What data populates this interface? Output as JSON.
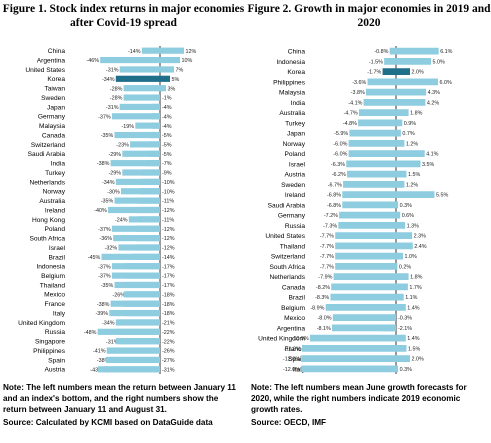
{
  "chart_data": [
    {
      "type": "bar",
      "title": "Figure 1. Stock index returns in major economies after Covid-19 spread",
      "colors": {
        "bar": "#8ecde0",
        "highlight": "#1f6f8b",
        "axis": "#000000"
      },
      "categories": [
        "China",
        "Argentina",
        "United States",
        "Korea",
        "Taiwan",
        "Sweden",
        "Japan",
        "Germany",
        "Malaysia",
        "Canada",
        "Switzerland",
        "Saudi Arabia",
        "India",
        "Turkey",
        "Netherlands",
        "Norway",
        "Australia",
        "Ireland",
        "Hong Kong",
        "Poland",
        "South Africa",
        "Israel",
        "Brazil",
        "Indonesia",
        "Belgium",
        "Thailand",
        "Mexico",
        "France",
        "Italy",
        "United Kingdom",
        "Russia",
        "Singapore",
        "Philippines",
        "Spain",
        "Austria"
      ],
      "highlight": "Korea",
      "series": [
        {
          "name": "return between January 11 and an index's bottom",
          "values": [
            -14,
            -46,
            -31,
            -34,
            -28,
            -28,
            -31,
            -37,
            -19,
            -35,
            -23,
            -29,
            -38,
            -29,
            -34,
            -30,
            -35,
            -40,
            -24,
            -37,
            -36,
            -32,
            -45,
            -37,
            -37,
            -35,
            -26,
            -38,
            -39,
            -34,
            -48,
            -31,
            -41,
            -38,
            -43
          ],
          "labels": [
            "-14%",
            "-46%",
            "-31%",
            "-34%",
            "-28%",
            "-28%",
            "-31%",
            "-37%",
            "-19%",
            "-35%",
            "-23%",
            "-29%",
            "-38%",
            "-29%",
            "-34%",
            "-30%",
            "-35%",
            "-40%",
            "-24%",
            "-37%",
            "-36%",
            "-32%",
            "-45%",
            "-37%",
            "-37%",
            "-35%",
            "-26%",
            "-38%",
            "-39%",
            "-34%",
            "-48%",
            "-31%",
            "-41%",
            "-38%",
            "-43%"
          ]
        },
        {
          "name": "return between January 11 and August 31",
          "values": [
            12,
            10,
            7,
            5,
            3,
            -1,
            -4,
            -4,
            -4,
            -5,
            -5,
            -5,
            -7,
            -9,
            -10,
            -10,
            -11,
            -12,
            -11,
            -12,
            -12,
            -12,
            -14,
            -17,
            -17,
            -17,
            -18,
            -18,
            -18,
            -21,
            -22,
            -22,
            -26,
            -27,
            -31
          ],
          "labels": [
            "12%",
            "10%",
            "7%",
            "5%",
            "3%",
            "-1%",
            "-4%",
            "-4%",
            "-4%",
            "-5%",
            "-5%",
            "-5%",
            "-7%",
            "-9%",
            "-10%",
            "-10%",
            "-11%",
            "-12%",
            "-11%",
            "-12%",
            "-12%",
            "-12%",
            "-14%",
            "-17%",
            "-17%",
            "-17%",
            "-18%",
            "-18%",
            "-18%",
            "-21%",
            "-22%",
            "-22%",
            "-26%",
            "-27%",
            "-31%"
          ]
        }
      ],
      "note": "Note: The left numbers mean the return between January 11 and an index's bottom, and the right numbers show the return between January 11 and August 31.",
      "source": "Source: Calculated by KCMI based on DataGuide data"
    },
    {
      "type": "bar",
      "title": "Figure 2. Growth in major economies in 2019 and 2020",
      "colors": {
        "bar": "#8ecde0",
        "highlight": "#1f6f8b",
        "axis": "#000000"
      },
      "categories": [
        "China",
        "Indonesia",
        "Korea",
        "Philippines",
        "Malaysia",
        "India",
        "Australia",
        "Turkey",
        "Japan",
        "Norway",
        "Poland",
        "Israel",
        "Austria",
        "Sweden",
        "Ireland",
        "Saudi Arabia",
        "Germany",
        "Russia",
        "United States",
        "Thailand",
        "Switzerland",
        "South Africa",
        "Netherlands",
        "Canada",
        "Brazil",
        "Belgium",
        "Mexico",
        "Argentina",
        "United Kingdom",
        "France",
        "Spain",
        "Italy"
      ],
      "highlight": "Korea",
      "series": [
        {
          "name": "June growth forecasts for 2020",
          "values": [
            -0.8,
            -1.5,
            -1.7,
            -3.6,
            -3.8,
            -4.1,
            -4.7,
            -4.8,
            -5.9,
            -6.0,
            -6.0,
            -6.3,
            -6.2,
            -6.7,
            -6.8,
            -6.8,
            -7.2,
            -7.3,
            -7.7,
            -7.7,
            -7.7,
            -7.7,
            -7.9,
            -8.2,
            -8.3,
            -8.9,
            -8.0,
            -8.1,
            -10.9,
            -11.9,
            -12.0,
            -12.0
          ],
          "labels": [
            "-0.8%",
            "-1.5%",
            "-1.7%",
            "-3.6%",
            "-3.8%",
            "-4.1%",
            "-4.7%",
            "-4.8%",
            "-5.9%",
            "-6.0%",
            "-6.0%",
            "-6.3%",
            "-6.2%",
            "-6.7%",
            "-6.8%",
            "-6.8%",
            "-7.2%",
            "-7.3%",
            "-7.7%",
            "-7.7%",
            "-7.7%",
            "-7.7%",
            "-7.9%",
            "-8.2%",
            "-8.3%",
            "-8.9%",
            "-8.0%",
            "-8.1%",
            "-10.9%",
            "-11.9%",
            "-12.0%",
            "-12.0%"
          ]
        },
        {
          "name": "2019 economic growth rates",
          "values": [
            6.1,
            5.0,
            2.0,
            6.0,
            4.3,
            4.2,
            1.8,
            0.9,
            0.7,
            1.2,
            4.1,
            3.5,
            1.5,
            1.2,
            5.5,
            0.3,
            0.6,
            1.3,
            2.3,
            2.4,
            1.0,
            0.2,
            1.8,
            1.7,
            1.1,
            1.4,
            -0.3,
            -2.1,
            1.4,
            1.5,
            2.0,
            0.3
          ],
          "labels": [
            "6.1%",
            "5.0%",
            "2.0%",
            "6.0%",
            "4.3%",
            "4.2%",
            "1.8%",
            "0.9%",
            "0.7%",
            "1.2%",
            "4.1%",
            "3.5%",
            "1.5%",
            "1.2%",
            "5.5%",
            "0.3%",
            "0.6%",
            "1.3%",
            "2.3%",
            "2.4%",
            "1.0%",
            "0.2%",
            "1.8%",
            "1.7%",
            "1.1%",
            "1.4%",
            "-0.3%",
            "-2.1%",
            "1.4%",
            "1.5%",
            "2.0%",
            "0.3%"
          ]
        }
      ],
      "note": "Note: The left numbers mean June growth forecasts for 2020, while the right numbers indicate 2019 economic growth rates.",
      "source": "Source: OECD, IMF"
    }
  ]
}
